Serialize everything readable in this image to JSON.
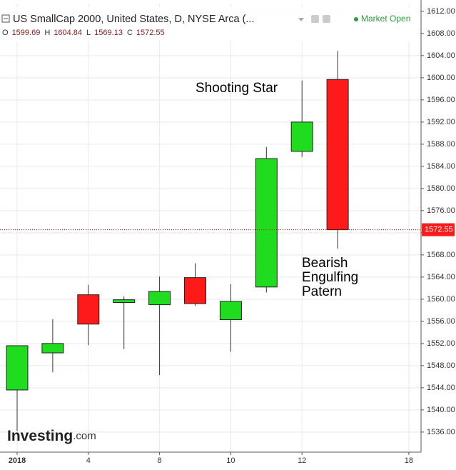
{
  "chart_data": {
    "type": "candlestick",
    "title": "US SmallCap 2000, United States, D, NYSE Arca (...",
    "status": "Market Open",
    "ohlc_keys": [
      "O",
      "H",
      "L",
      "C"
    ],
    "categories": [
      "2018",
      null,
      "4",
      null,
      "8",
      null,
      "10",
      null,
      "12",
      null,
      null,
      "18"
    ],
    "open": [
      1543.6,
      1550.3,
      1560.8,
      1559.4,
      1559.0,
      1563.9,
      1556.3,
      1562.2,
      1586.7,
      1599.69,
      null,
      null
    ],
    "high": [
      1551.6,
      1556.4,
      1562.6,
      1560.5,
      1564.1,
      1566.5,
      1562.7,
      1587.5,
      1599.5,
      1604.84,
      null,
      null
    ],
    "low": [
      1536.2,
      1546.8,
      1551.7,
      1551.0,
      1546.3,
      1558.8,
      1550.5,
      1561.2,
      1585.7,
      1569.13,
      null,
      null
    ],
    "close": [
      1551.6,
      1552.0,
      1555.5,
      1559.9,
      1561.4,
      1559.2,
      1559.6,
      1585.4,
      1592.0,
      1572.55,
      null,
      null
    ],
    "up_color": "#1fdc1f",
    "down_color": "#ff1a1a",
    "ylim": [
      1532.5,
      1613.4
    ],
    "yticks": [
      {
        "value": 1536,
        "label": "1536.00"
      },
      {
        "value": 1540,
        "label": "1540.00"
      },
      {
        "value": 1544,
        "label": "1544.00"
      },
      {
        "value": 1548,
        "label": "1548.00"
      },
      {
        "value": 1552,
        "label": "1552.00"
      },
      {
        "value": 1556,
        "label": "1556.00"
      },
      {
        "value": 1560,
        "label": "1560.00"
      },
      {
        "value": 1564,
        "label": "1564.00"
      },
      {
        "value": 1568,
        "label": "1568.00"
      },
      {
        "value": 1572,
        "label": "1572.00"
      },
      {
        "value": 1576,
        "label": "1576.00"
      },
      {
        "value": 1580,
        "label": "1580.00"
      },
      {
        "value": 1584,
        "label": "1584.00"
      },
      {
        "value": 1588,
        "label": "1588.00"
      },
      {
        "value": 1592,
        "label": "1592.00"
      },
      {
        "value": 1596,
        "label": "1596.00"
      },
      {
        "value": 1600,
        "label": "1600.00"
      },
      {
        "value": 1604,
        "label": "1604.00"
      },
      {
        "value": 1608,
        "label": "1608.00"
      },
      {
        "value": 1612,
        "label": "1612.00"
      }
    ],
    "grid": true,
    "annotations": [
      {
        "lines": [
          "Shooting Star"
        ],
        "at": 8
      },
      {
        "lines": [
          "Bearish",
          "Engulfing",
          "Patern"
        ],
        "at": 8
      }
    ],
    "watermark": [
      "Investing",
      ".com"
    ]
  }
}
